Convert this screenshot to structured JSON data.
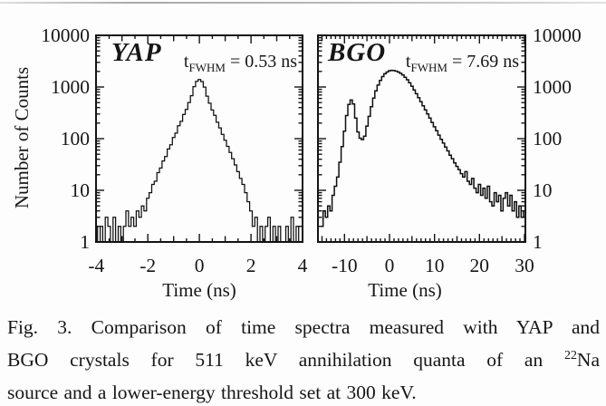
{
  "figure": {
    "shared_ylabel": "Number of Counts",
    "plots": [
      {
        "name": "YAP",
        "annotation": {
          "t": "t",
          "sub": "FWHM",
          "rest": "= 0.53 ns"
        },
        "xlabel": "Time (ns)",
        "xtick_labels": [
          "-4",
          "-2",
          "0",
          "2",
          "4"
        ],
        "xtick_values": [
          -4,
          -2,
          0,
          2,
          4
        ],
        "ytick_labels": [
          "10000",
          "1000",
          "100",
          "10",
          "1"
        ],
        "ytick_values": [
          10000,
          1000,
          100,
          10,
          1
        ],
        "ylabel_side": "left"
      },
      {
        "name": "BGO",
        "annotation": {
          "t": "t",
          "sub": "FWHM",
          "rest": "= 7.69 ns"
        },
        "xlabel": "Time (ns)",
        "xtick_labels": [
          "-10",
          "0",
          "10",
          "20",
          "30"
        ],
        "xtick_values": [
          -10,
          0,
          10,
          20,
          30
        ],
        "ytick_labels": [
          "10000",
          "1000",
          "100",
          "10",
          "1"
        ],
        "ytick_values": [
          10000,
          1000,
          100,
          10,
          1
        ],
        "ylabel_side": "right"
      }
    ]
  },
  "chart_data": [
    {
      "type": "line",
      "style": "histogram-step",
      "title": "YAP",
      "xlabel": "Time (ns)",
      "ylabel": "Number of Counts",
      "y_scale": "log",
      "ylim": [
        1,
        10000
      ],
      "xlim": [
        -4,
        4
      ],
      "annotation": "t_FWHM = 0.53 ns",
      "fwhm_ns": 0.53,
      "bin_start_ns": -4.0,
      "bin_step_ns": 0.1,
      "counts": [
        2,
        1,
        2,
        1,
        3,
        2,
        1,
        3,
        1,
        2,
        1,
        2,
        4,
        2,
        3,
        2,
        4,
        3,
        5,
        4,
        7,
        9,
        13,
        15,
        22,
        27,
        37,
        45,
        63,
        76,
        105,
        128,
        178,
        216,
        295,
        368,
        502,
        678,
        1015,
        1285,
        1400,
        1275,
        995,
        665,
        485,
        358,
        282,
        208,
        162,
        121,
        93,
        71,
        54,
        41,
        31,
        23,
        17,
        13,
        9,
        6,
        4,
        2,
        3,
        1,
        2,
        1,
        2,
        3,
        1,
        2,
        1,
        2,
        1,
        1,
        2,
        1,
        3,
        1,
        2,
        1,
        1
      ]
    },
    {
      "type": "line",
      "style": "histogram-step",
      "title": "BGO",
      "xlabel": "Time (ns)",
      "ylabel": "Number of Counts",
      "y_scale": "log",
      "ylim": [
        1,
        10000
      ],
      "xlim": [
        -15.9,
        30.2
      ],
      "annotation": "t_FWHM = 7.69 ns",
      "fwhm_ns": 7.69,
      "bin_start_ns": -15.0,
      "bin_step_ns": 0.5,
      "counts": [
        2,
        4,
        3,
        5,
        4,
        8,
        12,
        18,
        35,
        70,
        140,
        280,
        460,
        560,
        470,
        250,
        135,
        102,
        96,
        112,
        175,
        270,
        415,
        610,
        845,
        1090,
        1340,
        1590,
        1800,
        1950,
        2060,
        2100,
        2080,
        2030,
        1945,
        1840,
        1705,
        1545,
        1380,
        1205,
        1035,
        880,
        742,
        620,
        518,
        432,
        360,
        300,
        250,
        206,
        170,
        142,
        117,
        97,
        82,
        69,
        58,
        48,
        41,
        34,
        29,
        25,
        21,
        18,
        23,
        15,
        13,
        17,
        11,
        9,
        13,
        8,
        11,
        7,
        12,
        6,
        5,
        9,
        6,
        8,
        4,
        7,
        9,
        5,
        8,
        4,
        6,
        3,
        5,
        3,
        4,
        3
      ]
    }
  ],
  "caption": {
    "line1": "Fig. 3. Comparison of time spectra measured with YAP and",
    "line2_pre": "BGO crystals for 511 keV annihilation quanta of an ",
    "line2_sup": "22",
    "line2_post": "Na",
    "line3": "source and a lower-energy threshold set at 300 keV."
  }
}
